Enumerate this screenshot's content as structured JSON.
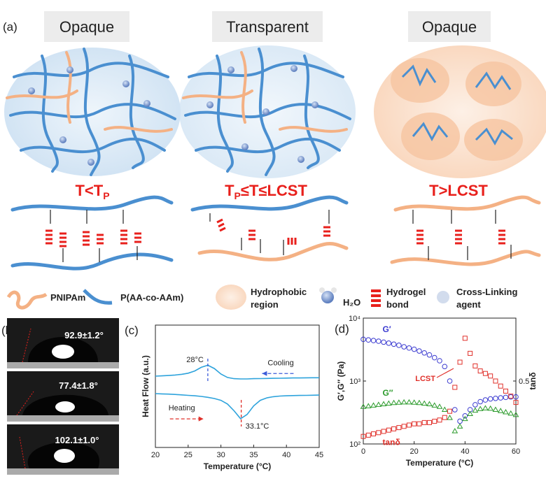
{
  "panel_a": {
    "label": "(a)",
    "states": [
      "Opaque",
      "Transparent",
      "Opaque"
    ],
    "conditions": [
      {
        "pre": "T<T",
        "sub": "P"
      },
      {
        "pre": "T",
        "sub": "P",
        "post": "≤T≤LCST"
      },
      {
        "pre": "T>LCST"
      }
    ],
    "legend": {
      "pnipam": "PNIPAm",
      "copolymer": "P(AA-co-AAm)",
      "hydrophobic": [
        "Hydrophobic",
        "region"
      ],
      "water": "H₂O",
      "bond": [
        "Hydrogel",
        "bond"
      ],
      "crosslinker": [
        "Cross-Linking",
        "agent"
      ]
    }
  },
  "panel_b": {
    "label": "(b)",
    "angles": [
      "92.9±1.2°",
      "77.4±1.8°",
      "102.1±1.0°"
    ]
  },
  "chart_data": [
    {
      "type": "line",
      "panel": "(c)",
      "xlabel": "Temperature (°C)",
      "ylabel": "Heat Flow (a.u.)",
      "x": [
        20,
        21,
        22,
        23,
        24,
        25,
        26,
        27,
        28,
        29,
        30,
        31,
        32,
        33,
        34,
        35,
        36,
        37,
        38,
        39,
        40,
        41,
        42,
        43,
        44,
        45
      ],
      "series": [
        {
          "name": "Cooling",
          "color": "#2ea3dc",
          "arrow_color": "#3b5bd9",
          "direction": "left",
          "values": [
            5.83,
            5.85,
            5.88,
            5.92,
            5.98,
            6.07,
            6.25,
            6.55,
            6.72,
            6.45,
            6.0,
            5.72,
            5.62,
            5.6,
            5.6,
            5.62,
            5.63,
            5.64,
            5.65,
            5.66,
            5.67,
            5.68,
            5.68,
            5.69,
            5.7,
            5.7
          ]
        },
        {
          "name": "Heating",
          "color": "#2ea3dc",
          "arrow_color": "#e0302a",
          "direction": "right",
          "values": [
            4.4,
            4.38,
            4.36,
            4.33,
            4.3,
            4.26,
            4.22,
            4.17,
            4.1,
            4.0,
            3.85,
            3.55,
            3.0,
            2.35,
            2.7,
            3.4,
            3.85,
            4.05,
            4.15,
            4.2,
            4.22,
            4.24,
            4.25,
            4.26,
            4.27,
            4.28
          ]
        }
      ],
      "annotations": [
        {
          "value": 28,
          "label": "28°C",
          "color": "#3b5bd9"
        },
        {
          "value": 33.1,
          "label": "33.1°C",
          "color": "#e0302a"
        }
      ],
      "xlim": [
        20,
        45
      ],
      "xticks": [
        20,
        25,
        30,
        35,
        40,
        45
      ],
      "ylim": [
        0,
        10
      ]
    },
    {
      "type": "scatter",
      "panel": "(d)",
      "xlabel": "Temperature (°C)",
      "ylabel": "G′,G″ (Pa)",
      "y2label": "tanδ",
      "annotation": "LCST",
      "x": [
        0,
        2,
        4,
        6,
        8,
        10,
        12,
        14,
        16,
        18,
        20,
        22,
        24,
        26,
        28,
        30,
        32,
        34,
        36,
        38,
        40,
        42,
        44,
        46,
        48,
        50,
        52,
        54,
        56,
        58,
        60
      ],
      "series": [
        {
          "name": "G′",
          "color": "#3b3bd0",
          "marker": "circle",
          "values": [
            4600,
            4500,
            4400,
            4300,
            4150,
            4000,
            3850,
            3700,
            3500,
            3350,
            3200,
            3000,
            2800,
            2600,
            2350,
            2100,
            1700,
            1000,
            350,
            230,
            280,
            350,
            420,
            470,
            500,
            520,
            530,
            540,
            550,
            560,
            560
          ]
        },
        {
          "name": "G″",
          "color": "#2a9a2a",
          "marker": "triangle",
          "values": [
            390,
            400,
            410,
            420,
            430,
            440,
            450,
            455,
            460,
            460,
            455,
            450,
            440,
            430,
            410,
            390,
            350,
            260,
            160,
            190,
            250,
            300,
            340,
            360,
            370,
            365,
            350,
            335,
            320,
            305,
            290
          ]
        },
        {
          "name": "tanδ",
          "color": "#e0302a",
          "marker": "square",
          "axis": "y2",
          "values": [
            0.06,
            0.07,
            0.08,
            0.09,
            0.1,
            0.11,
            0.12,
            0.13,
            0.14,
            0.15,
            0.16,
            0.16,
            0.17,
            0.17,
            0.18,
            0.19,
            0.21,
            0.26,
            0.45,
            0.65,
            0.84,
            0.72,
            0.62,
            0.58,
            0.56,
            0.54,
            0.5,
            0.46,
            0.42,
            0.38,
            0.33
          ]
        }
      ],
      "xlim": [
        0,
        60
      ],
      "xticks": [
        0,
        20,
        40,
        60
      ],
      "ylog": true,
      "ylim": [
        100,
        10000
      ],
      "yticks": [
        {
          "value": 100,
          "label": "10²"
        },
        {
          "value": 1000,
          "label": "10³"
        },
        {
          "value": 10000,
          "label": "10⁴"
        }
      ],
      "y2lim": [
        0,
        1
      ],
      "y2ticks": [
        0.5
      ]
    }
  ]
}
